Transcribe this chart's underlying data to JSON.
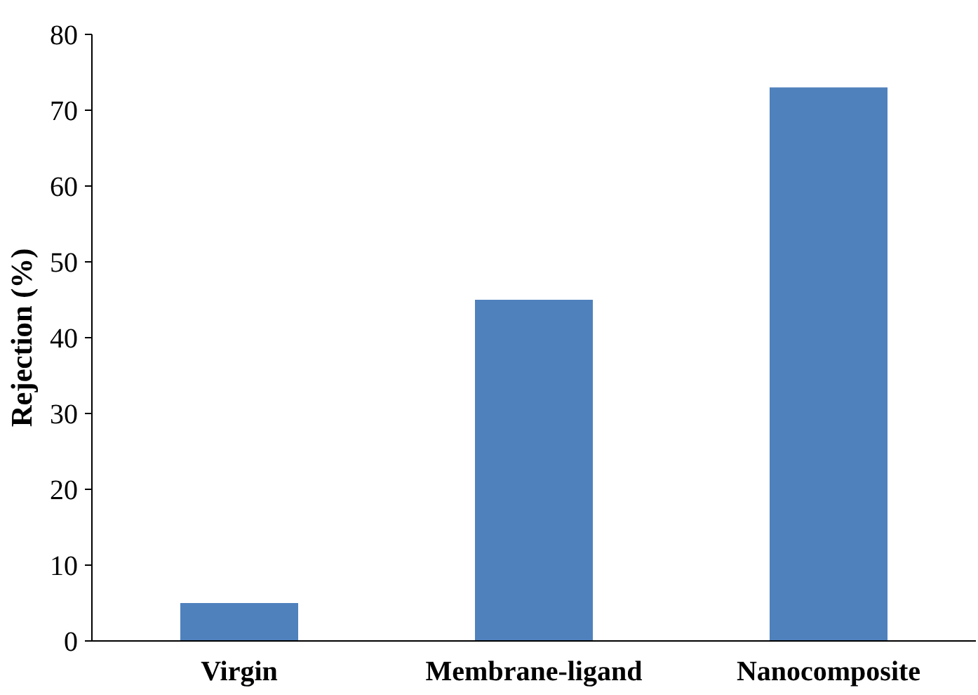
{
  "chart_data": {
    "type": "bar",
    "ylabel": "Rejection (%)",
    "categories": [
      "Virgin",
      "Membrane-ligand",
      "Nanocomposite"
    ],
    "values": [
      5,
      45,
      73
    ],
    "color": "#4f81bd",
    "ylim": [
      0,
      80
    ],
    "yticks": [
      0,
      10,
      20,
      30,
      40,
      50,
      60,
      70,
      80
    ],
    "grid": false
  }
}
